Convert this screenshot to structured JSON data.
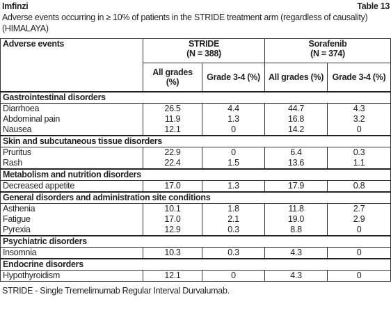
{
  "header": {
    "brand": "Imfinzi",
    "table_label": "Table 13",
    "caption": "Adverse events occurring in ≥ 10% of patients in the STRIDE treatment arm (regardless of causality) (HIMALAYA)"
  },
  "table": {
    "first_column": "Adverse events",
    "groups": [
      {
        "name": "STRIDE",
        "n": "(N = 388)",
        "subcolumns": [
          "All grades (%)",
          "Grade 3-4 (%)"
        ]
      },
      {
        "name": "Sorafenib",
        "n": "(N = 374)",
        "subcolumns": [
          "All grades (%)",
          "Grade 3-4 (%)"
        ]
      }
    ],
    "sections": [
      {
        "name": "Gastrointestinal disorders",
        "rows": [
          [
            "Diarrhoea",
            "26.5",
            "4.4",
            "44.7",
            "4.3"
          ],
          [
            "Abdominal pain",
            "11.9",
            "1.3",
            "16.8",
            "3.2"
          ],
          [
            "Nausea",
            "12.1",
            "0",
            "14.2",
            "0"
          ]
        ]
      },
      {
        "name": "Skin and subcutaneous tissue disorders",
        "rows": [
          [
            "Pruritus",
            "22.9",
            "0",
            "6.4",
            "0.3"
          ],
          [
            "Rash",
            "22.4",
            "1.5",
            "13.6",
            "1.1"
          ]
        ]
      },
      {
        "name": "Metabolism and nutrition disorders",
        "rows": [
          [
            "Decreased appetite",
            "17.0",
            "1.3",
            "17.9",
            "0.8"
          ]
        ]
      },
      {
        "name": "General disorders and administration site conditions",
        "rows": [
          [
            "Asthenia",
            "10.1",
            "1.8",
            "11.8",
            "2.7"
          ],
          [
            "Fatigue",
            "17.0",
            "2.1",
            "19.0",
            "2.9"
          ],
          [
            "Pyrexia",
            "12.9",
            "0.3",
            "8.8",
            "0"
          ]
        ]
      },
      {
        "name": "Psychiatric disorders",
        "rows": [
          [
            "Insomnia",
            "10.3",
            "0.3",
            "4.3",
            "0"
          ]
        ]
      },
      {
        "name": "Endocrine disorders",
        "rows": [
          [
            "Hypothyroidism",
            "12.1",
            "0",
            "4.3",
            "0"
          ]
        ]
      }
    ]
  },
  "footer": "STRIDE - Single Tremelimumab Regular Interval Durvalumab."
}
